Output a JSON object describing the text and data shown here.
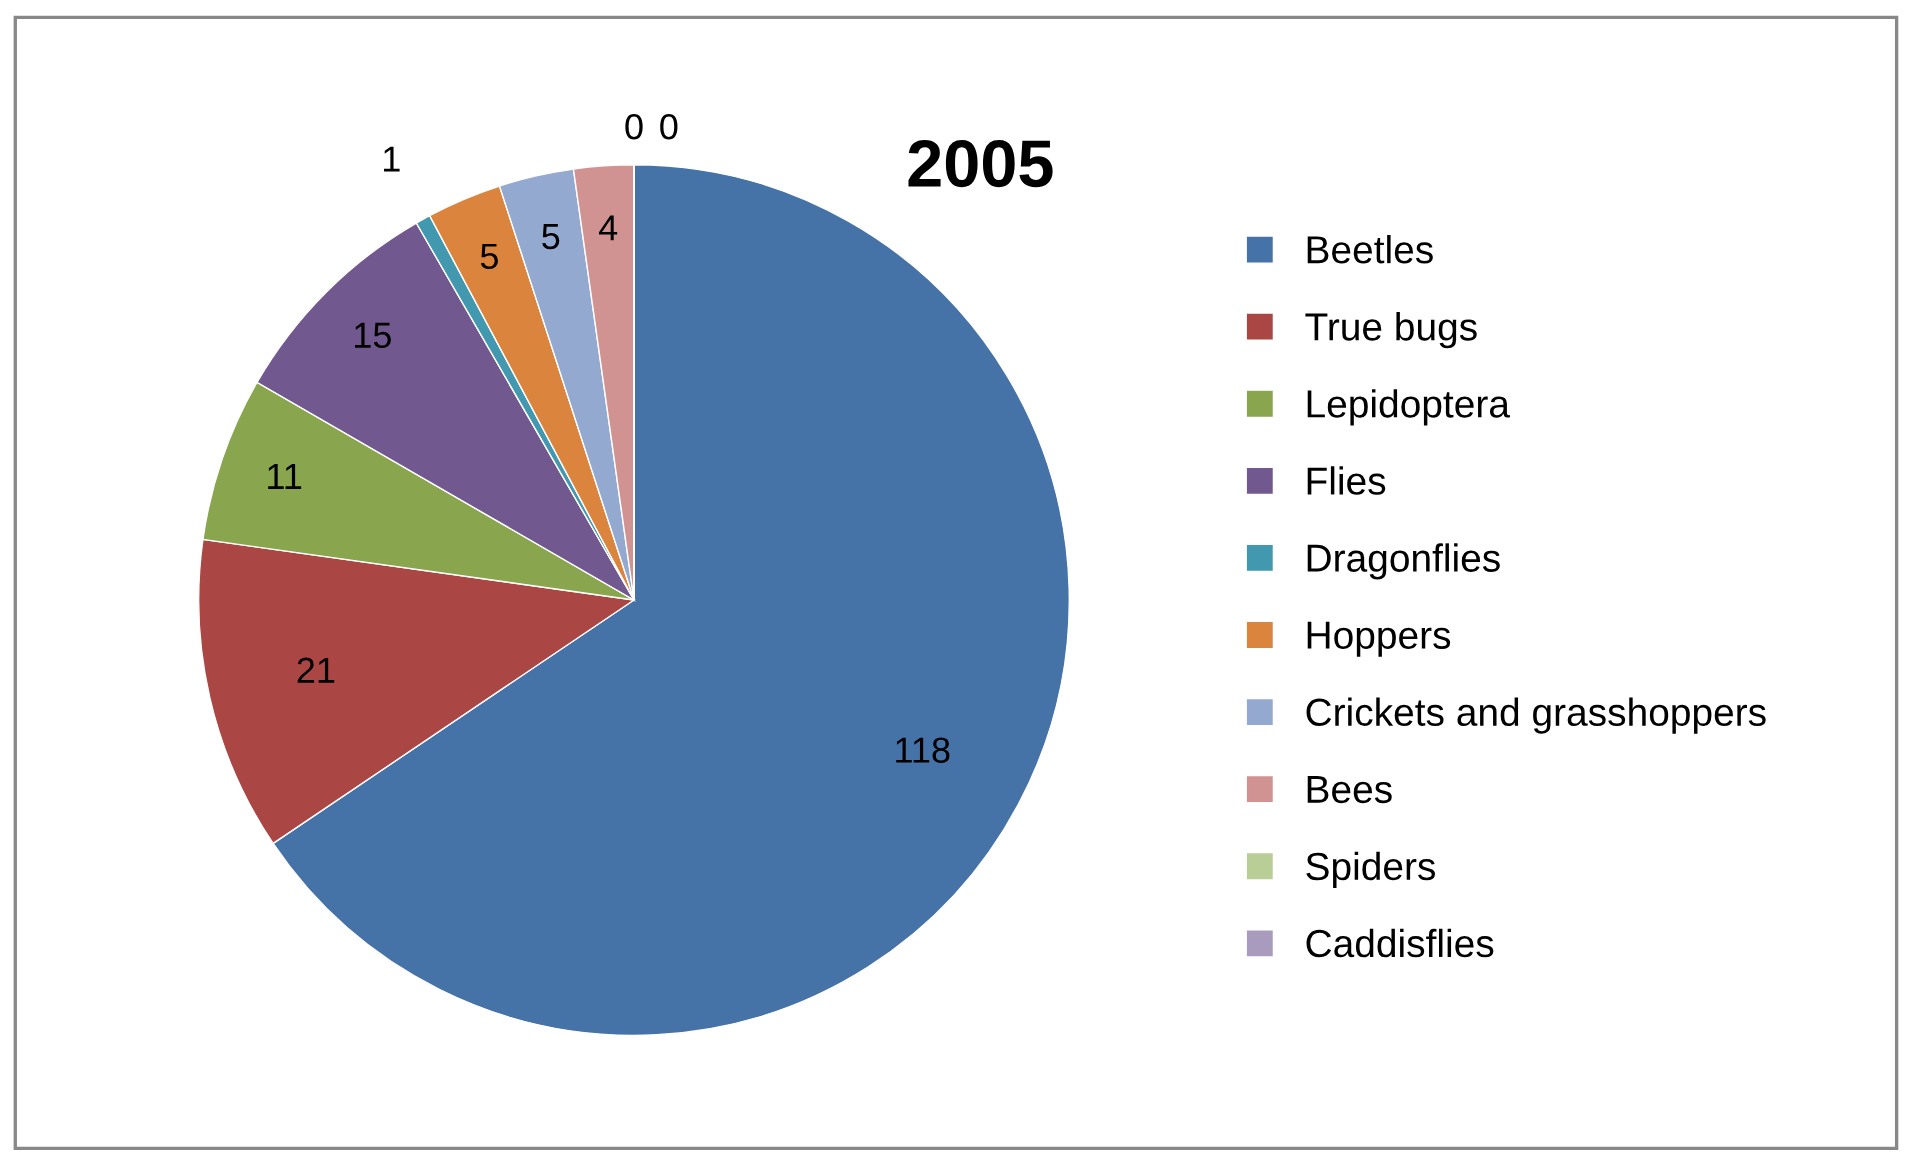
{
  "chart_data": {
    "type": "pie",
    "title": "2005",
    "categories": [
      "Beetles",
      "True bugs",
      "Lepidoptera",
      "Flies",
      "Dragonflies",
      "Hoppers",
      "Crickets and grasshoppers",
      "Bees",
      "Spiders",
      "Caddisflies"
    ],
    "values": [
      118,
      21,
      11,
      15,
      1,
      5,
      5,
      4,
      0,
      0
    ],
    "colors": [
      "#4572a7",
      "#aa4643",
      "#89a54e",
      "#71588f",
      "#4198af",
      "#db843d",
      "#93a9cf",
      "#d19392",
      "#b9cd96",
      "#a99bbd"
    ],
    "value_labels": [
      "118",
      "21",
      "11",
      "15",
      "1",
      "5",
      "5",
      "4",
      "0",
      "0"
    ],
    "legend": "right"
  }
}
